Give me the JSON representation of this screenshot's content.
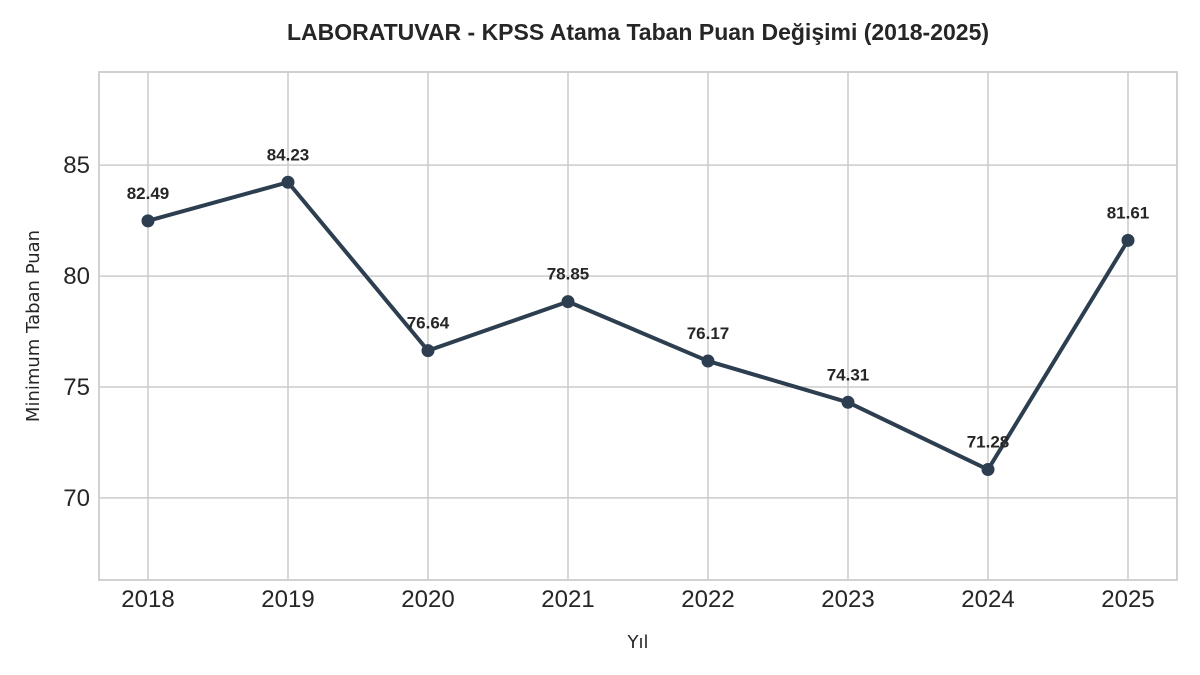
{
  "chart_data": {
    "type": "line",
    "title": "LABORATUVAR - KPSS Atama Taban Puan Değişimi (2018-2025)",
    "xlabel": "Yıl",
    "ylabel": "Minimum Taban Puan",
    "categories": [
      "2018",
      "2019",
      "2020",
      "2021",
      "2022",
      "2023",
      "2024",
      "2025"
    ],
    "values": [
      82.49,
      84.23,
      76.64,
      78.85,
      76.17,
      74.31,
      71.28,
      81.61
    ],
    "data_labels": [
      "82.49",
      "84.23",
      "76.64",
      "78.85",
      "76.17",
      "74.31",
      "71.28",
      "81.61"
    ],
    "y_ticks": [
      70,
      75,
      80,
      85
    ],
    "y_tick_labels": [
      "70",
      "75",
      "80",
      "85"
    ],
    "ylim": [
      66.3,
      89.2
    ],
    "grid": true,
    "line_color": "#2c3e50"
  }
}
